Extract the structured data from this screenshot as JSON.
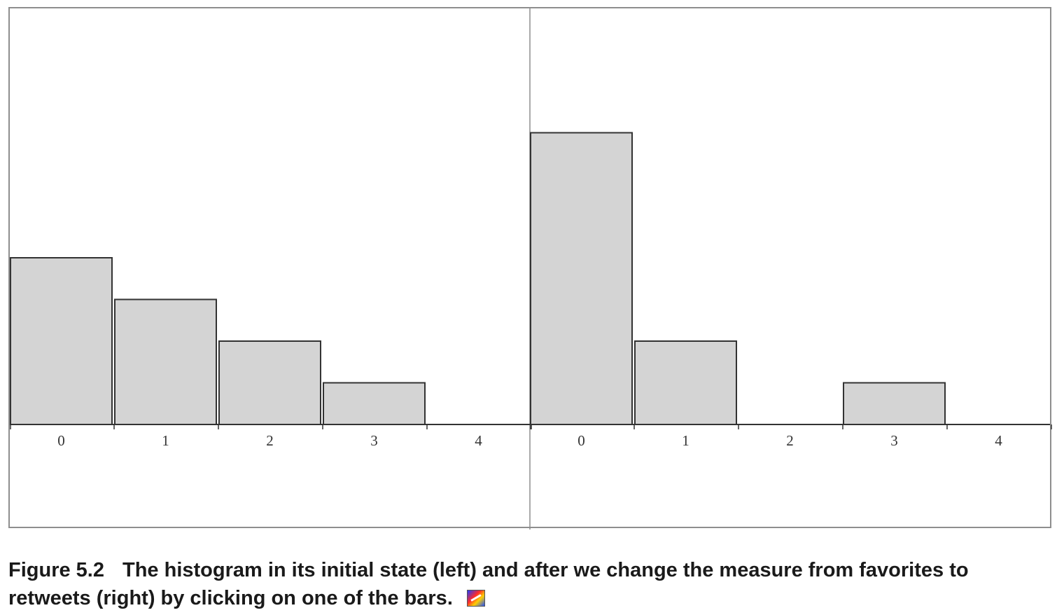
{
  "chart_data": [
    {
      "type": "bar",
      "categories": [
        "0",
        "1",
        "2",
        "3",
        "4"
      ],
      "values": [
        4,
        3,
        2,
        1,
        0
      ],
      "ylim": [
        0,
        7
      ],
      "grid": false,
      "bar_fill": "#d4d4d4",
      "bar_stroke": "#333333"
    },
    {
      "type": "bar",
      "categories": [
        "0",
        "1",
        "2",
        "3",
        "4"
      ],
      "values": [
        7,
        2,
        0,
        1,
        0
      ],
      "ylim": [
        0,
        7
      ],
      "grid": false,
      "bar_fill": "#d4d4d4",
      "bar_stroke": "#333333"
    }
  ],
  "caption": {
    "label": "Figure 5.2",
    "text": "The histogram in its initial state (left) and after we change the measure from favorites to retweets (right) by clicking on one of the bars."
  },
  "colors": {
    "frame": "#8e8e8e",
    "axis": "#333333"
  },
  "icons": {
    "caption_icon": "colorful-thumbnail-icon"
  }
}
